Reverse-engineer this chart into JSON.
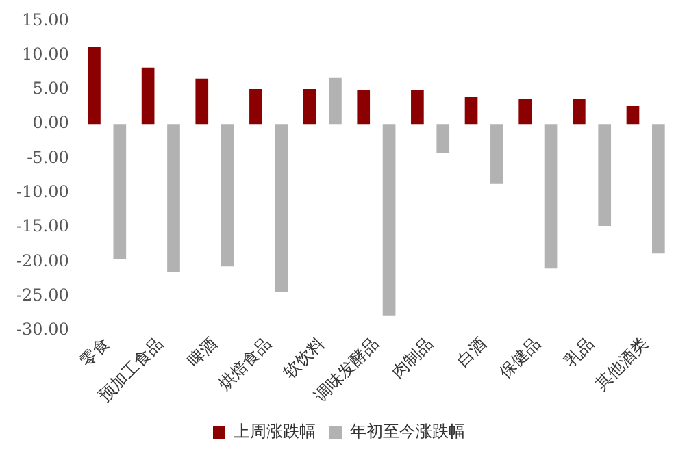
{
  "chart_data": {
    "type": "bar",
    "categories": [
      "零食",
      "预加工食品",
      "啤酒",
      "烘焙食品",
      "软饮料",
      "调味发酵品",
      "肉制品",
      "白酒",
      "保健品",
      "乳品",
      "其他酒类"
    ],
    "series": [
      {
        "name": "上周涨跌幅",
        "color": "#8b0000",
        "values": [
          11.2,
          8.2,
          6.6,
          5.1,
          5.1,
          4.9,
          4.9,
          4.0,
          3.7,
          3.7,
          2.6
        ]
      },
      {
        "name": "年初至今涨跌幅",
        "color": "#b2b2b2",
        "values": [
          -19.6,
          -21.5,
          -20.7,
          -24.4,
          6.7,
          -27.8,
          -4.2,
          -8.7,
          -21.0,
          -14.8,
          -18.8
        ]
      }
    ],
    "ylim": [
      -30,
      15
    ],
    "yticks": [
      {
        "value": 15,
        "label": "15.00"
      },
      {
        "value": 10,
        "label": "10.00"
      },
      {
        "value": 5,
        "label": "5.00"
      },
      {
        "value": 0,
        "label": "0.00"
      },
      {
        "value": -5,
        "label": "-5.00"
      },
      {
        "value": -10,
        "label": "-10.00"
      },
      {
        "value": -15,
        "label": "-15.00"
      },
      {
        "value": -20,
        "label": "-20.00"
      },
      {
        "value": -25,
        "label": "-25.00"
      },
      {
        "value": -30,
        "label": "-30.00"
      }
    ],
    "grid": false,
    "legend": "bottom"
  }
}
